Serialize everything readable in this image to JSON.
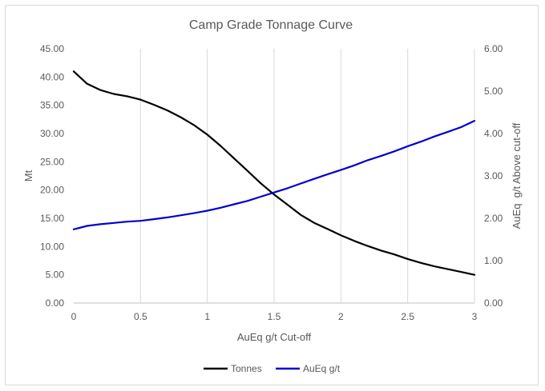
{
  "chart_data": {
    "type": "line",
    "title": "Camp Grade Tonnage Curve",
    "xlabel": "AuEq g/t Cut-off",
    "ylabel_left": "Mt",
    "ylabel_right": "AuEq  g/t Above cut-off",
    "xlim": [
      0,
      3
    ],
    "ylim_left": [
      0,
      45
    ],
    "ylim_right": [
      0,
      6
    ],
    "x_ticks": [
      "0",
      "0.5",
      "1",
      "1.5",
      "2",
      "2.5",
      "3"
    ],
    "y_left_ticks": [
      "0.00",
      "5.00",
      "10.00",
      "15.00",
      "20.00",
      "25.00",
      "30.00",
      "35.00",
      "40.00",
      "45.00"
    ],
    "y_right_ticks": [
      "0.00",
      "1.00",
      "2.00",
      "3.00",
      "4.00",
      "5.00",
      "6.00"
    ],
    "grid": "vertical",
    "legend_position": "bottom",
    "x": [
      0,
      0.1,
      0.2,
      0.3,
      0.4,
      0.5,
      0.6,
      0.7,
      0.8,
      0.9,
      1.0,
      1.1,
      1.2,
      1.3,
      1.4,
      1.5,
      1.6,
      1.7,
      1.8,
      1.9,
      2.0,
      2.1,
      2.2,
      2.3,
      2.4,
      2.5,
      2.6,
      2.7,
      2.8,
      2.9,
      3.0
    ],
    "series": [
      {
        "name": "Tonnes",
        "axis": "left",
        "color": "#000000",
        "values": [
          41.0,
          38.8,
          37.7,
          37.0,
          36.6,
          36.0,
          35.1,
          34.1,
          32.9,
          31.5,
          29.8,
          27.8,
          25.6,
          23.4,
          21.2,
          19.2,
          17.4,
          15.6,
          14.2,
          13.1,
          12.0,
          11.0,
          10.1,
          9.3,
          8.6,
          7.8,
          7.1,
          6.5,
          6.0,
          5.5,
          5.0
        ]
      },
      {
        "name": "AuEq g/t",
        "axis": "right",
        "color": "#0000cc",
        "values": [
          1.74,
          1.82,
          1.86,
          1.89,
          1.92,
          1.94,
          1.98,
          2.02,
          2.07,
          2.12,
          2.18,
          2.25,
          2.33,
          2.41,
          2.51,
          2.61,
          2.71,
          2.82,
          2.93,
          3.04,
          3.14,
          3.25,
          3.37,
          3.47,
          3.58,
          3.7,
          3.81,
          3.93,
          4.04,
          4.15,
          4.3
        ]
      }
    ]
  }
}
